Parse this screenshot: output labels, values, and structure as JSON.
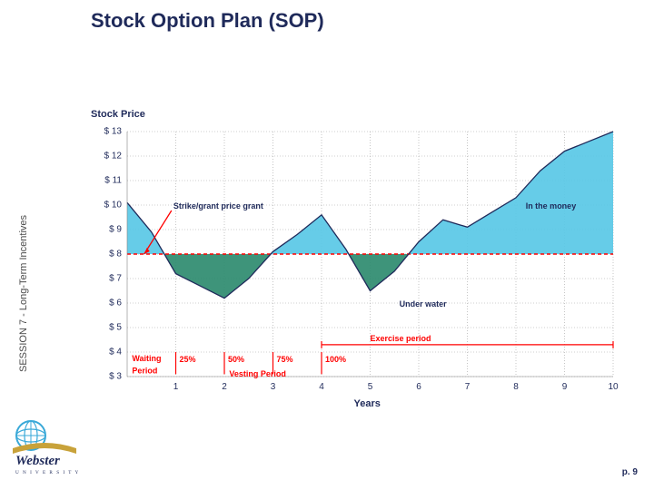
{
  "title": "Stock Option Plan (SOP)",
  "side_label": "SESSION 7 - Long-Term Incentives",
  "page_number": "p. 9",
  "chart": {
    "type": "area",
    "yaxis_title": "Stock Price",
    "xaxis_title": "Years",
    "ylim": [
      3,
      13
    ],
    "ytick_step": 1,
    "y_ticks": [
      "$ 13",
      "$ 12",
      "$ 11",
      "$ 10",
      "$ 9",
      "$ 8",
      "$ 7",
      "$ 6",
      "$ 5",
      "$ 4",
      "$ 3"
    ],
    "xlim": [
      0,
      10
    ],
    "x_ticks": [
      "1",
      "2",
      "3",
      "4",
      "5",
      "6",
      "7",
      "8",
      "9",
      "10"
    ],
    "background_color": "#ffffff",
    "grid_color": "#a0a0a0",
    "strike_price": 8,
    "strike_line_color": "#ff0000",
    "strike_line_dash": "4,3",
    "area_above_color": "#59c8e6",
    "area_below_color": "#2e8b6f",
    "price_line_color": "#1f2a5a",
    "stock_series": {
      "x": [
        0,
        0.5,
        1.0,
        1.5,
        2.0,
        2.5,
        3.0,
        3.5,
        4.0,
        4.5,
        5.0,
        5.5,
        6.0,
        6.5,
        7.0,
        7.5,
        8.0,
        8.5,
        9.0,
        9.5,
        10.0
      ],
      "y": [
        10.1,
        8.9,
        7.2,
        6.7,
        6.2,
        7.0,
        8.1,
        8.8,
        9.6,
        8.2,
        6.5,
        7.3,
        8.5,
        9.4,
        9.1,
        9.7,
        10.3,
        11.4,
        12.2,
        12.6,
        13.0
      ]
    },
    "vesting": {
      "waiting_label": "Waiting",
      "period_label": "Period",
      "vesting_period_label": "Vesting Period",
      "exercise_period_label": "Exercise period",
      "steps": [
        {
          "x": 1,
          "label": "25%"
        },
        {
          "x": 2,
          "label": "50%"
        },
        {
          "x": 3,
          "label": "75%"
        },
        {
          "x": 4,
          "label": "100%"
        }
      ],
      "bracket_color": "#ff0000"
    },
    "annotations": {
      "strike_label": "Strike/grant price grant",
      "strike_label_color": "#1f2a5a",
      "strike_arrow_color": "#ff0000",
      "in_the_money": "In the money",
      "in_the_money_color": "#1f2a5a",
      "under_water": "Under water",
      "under_water_color": "#1f2a5a"
    },
    "label_fontsize": 10,
    "title_fontsize": 22
  },
  "logo": {
    "text_top": "Webster",
    "text_bottom": "U N I V E R S I T Y",
    "globe_color": "#3aa9d8",
    "band_color": "#c8a23a",
    "text_color": "#1f2a5a"
  }
}
